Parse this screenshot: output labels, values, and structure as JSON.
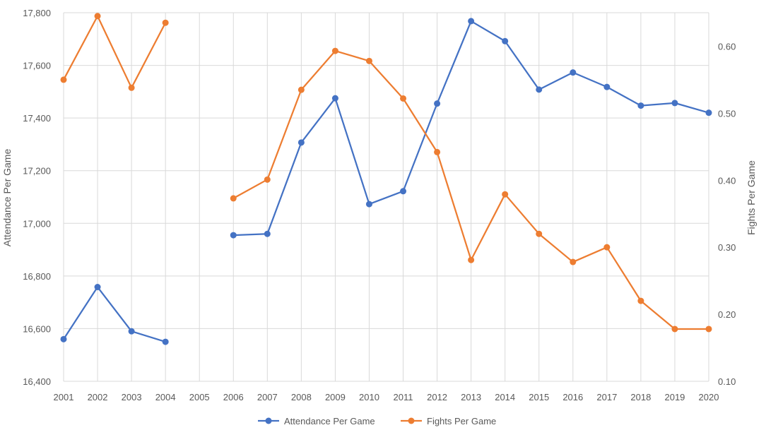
{
  "chart_data": {
    "type": "line",
    "x": [
      "2001",
      "2002",
      "2003",
      "2004",
      "2005",
      "2006",
      "2007",
      "2008",
      "2009",
      "2010",
      "2011",
      "2012",
      "2013",
      "2014",
      "2015",
      "2016",
      "2017",
      "2018",
      "2019",
      "2020"
    ],
    "series": [
      {
        "name": "Attendance Per Game",
        "axis": "left",
        "color": "#4472c4",
        "values": [
          16560,
          16758,
          16590,
          16550,
          null,
          16955,
          16960,
          17307,
          17475,
          17073,
          17122,
          17455,
          17768,
          17692,
          17508,
          17573,
          17518,
          17447,
          17457,
          17420
        ]
      },
      {
        "name": "Fights Per Game",
        "axis": "right",
        "color": "#ed7d31",
        "values": [
          0.55,
          0.645,
          0.538,
          0.635,
          null,
          0.373,
          0.401,
          0.535,
          0.593,
          0.578,
          0.522,
          0.442,
          0.281,
          0.379,
          0.32,
          0.278,
          0.3,
          0.22,
          0.178,
          0.178
        ]
      }
    ],
    "ylabel": "Attendance Per Game",
    "y2label": "Fights Per Game",
    "ylim": [
      16400,
      17800
    ],
    "yticks": [
      16400,
      16600,
      16800,
      17000,
      17200,
      17400,
      17600,
      17800
    ],
    "ytick_labels": [
      "16,400",
      "16,600",
      "16,800",
      "17,000",
      "17,200",
      "17,400",
      "17,600",
      "17,800"
    ],
    "y2lim": [
      0.1,
      0.65
    ],
    "y2ticks": [
      0.1,
      0.2,
      0.3,
      0.4,
      0.5,
      0.6
    ],
    "y2tick_labels": [
      "0.10",
      "0.20",
      "0.30",
      "0.40",
      "0.50",
      "0.60"
    ],
    "grid": true,
    "legend": "bottom"
  }
}
